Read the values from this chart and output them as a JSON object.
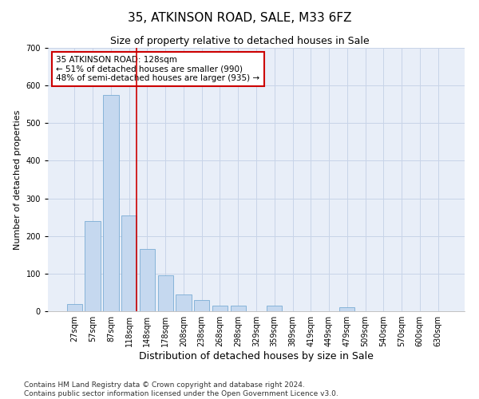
{
  "title": "35, ATKINSON ROAD, SALE, M33 6FZ",
  "subtitle": "Size of property relative to detached houses in Sale",
  "xlabel": "Distribution of detached houses by size in Sale",
  "ylabel": "Number of detached properties",
  "categories": [
    "27sqm",
    "57sqm",
    "87sqm",
    "118sqm",
    "148sqm",
    "178sqm",
    "208sqm",
    "238sqm",
    "268sqm",
    "298sqm",
    "329sqm",
    "359sqm",
    "389sqm",
    "419sqm",
    "449sqm",
    "479sqm",
    "509sqm",
    "540sqm",
    "570sqm",
    "600sqm",
    "630sqm"
  ],
  "values": [
    20,
    240,
    575,
    255,
    165,
    95,
    45,
    30,
    15,
    15,
    0,
    15,
    0,
    0,
    0,
    10,
    0,
    0,
    0,
    0,
    0
  ],
  "bar_color": "#c5d8ef",
  "bar_edge_color": "#7aadd4",
  "vline_color": "#cc0000",
  "annotation_text": "35 ATKINSON ROAD: 128sqm\n← 51% of detached houses are smaller (990)\n48% of semi-detached houses are larger (935) →",
  "annotation_box_color": "#ffffff",
  "annotation_box_edge_color": "#cc0000",
  "ylim": [
    0,
    700
  ],
  "yticks": [
    0,
    100,
    200,
    300,
    400,
    500,
    600,
    700
  ],
  "grid_color": "#c8d4e8",
  "bg_color": "#e8eef8",
  "footer": "Contains HM Land Registry data © Crown copyright and database right 2024.\nContains public sector information licensed under the Open Government Licence v3.0.",
  "title_fontsize": 11,
  "subtitle_fontsize": 9,
  "xlabel_fontsize": 9,
  "ylabel_fontsize": 8,
  "tick_fontsize": 7,
  "annotation_fontsize": 7.5,
  "footer_fontsize": 6.5
}
